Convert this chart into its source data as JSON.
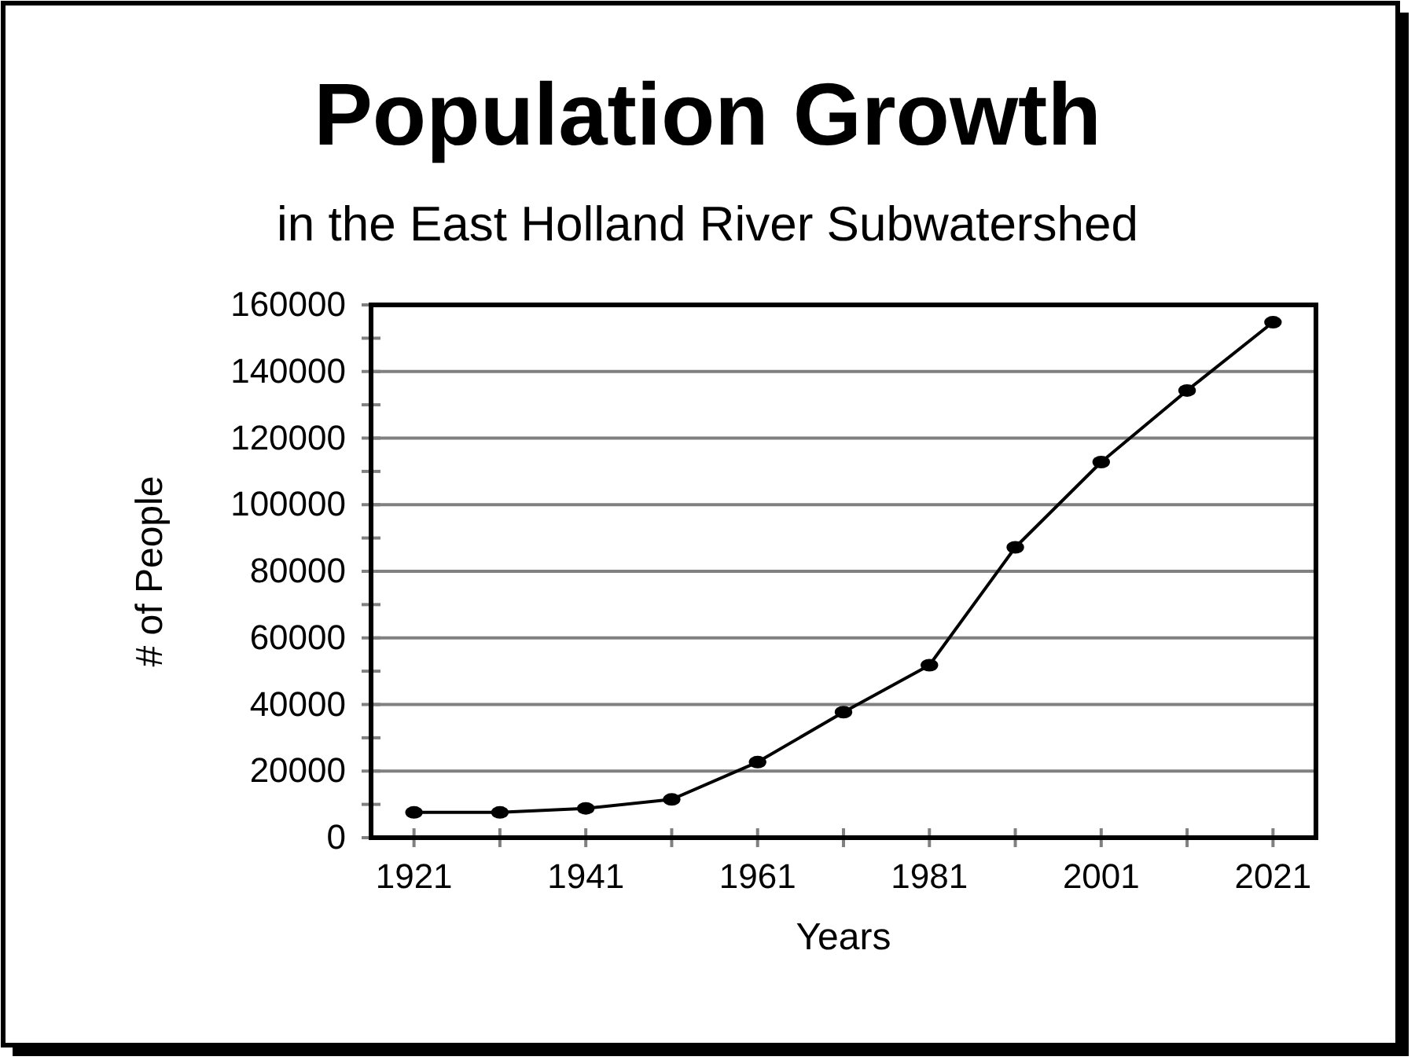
{
  "chart_data": {
    "type": "line",
    "title": "Population Growth",
    "subtitle": "in the East Holland River Subwatershed",
    "xlabel": "Years",
    "ylabel": "# of People",
    "x": [
      1921,
      1931,
      1941,
      1951,
      1961,
      1971,
      1981,
      1991,
      2001,
      2011,
      2021
    ],
    "series": [
      {
        "color": "#000000",
        "values": [
          7600,
          7600,
          8800,
          11500,
          22700,
          37700,
          51800,
          87200,
          112800,
          134300,
          154800
        ]
      }
    ],
    "xlim": [
      1916,
      2026
    ],
    "xticks": [
      1921,
      {
        "value": 1931,
        "label": null
      },
      1941,
      {
        "value": 1951,
        "label": null
      },
      1961,
      {
        "value": 1971,
        "label": null
      },
      1981,
      {
        "value": 1991,
        "label": null
      },
      2001,
      {
        "value": 2011,
        "label": null
      },
      2021
    ],
    "ylim": [
      0,
      160000
    ],
    "yticks": [
      0,
      {
        "value": 10000,
        "label": null
      },
      20000,
      {
        "value": 30000,
        "label": null
      },
      40000,
      {
        "value": 50000,
        "label": null
      },
      60000,
      {
        "value": 70000,
        "label": null
      },
      80000,
      {
        "value": 90000,
        "label": null
      },
      100000,
      {
        "value": 110000,
        "label": null
      },
      120000,
      {
        "value": 130000,
        "label": null
      },
      140000,
      {
        "value": 150000,
        "label": null
      },
      160000
    ],
    "grid": "y",
    "marker": "circle",
    "line_style": "solid"
  }
}
